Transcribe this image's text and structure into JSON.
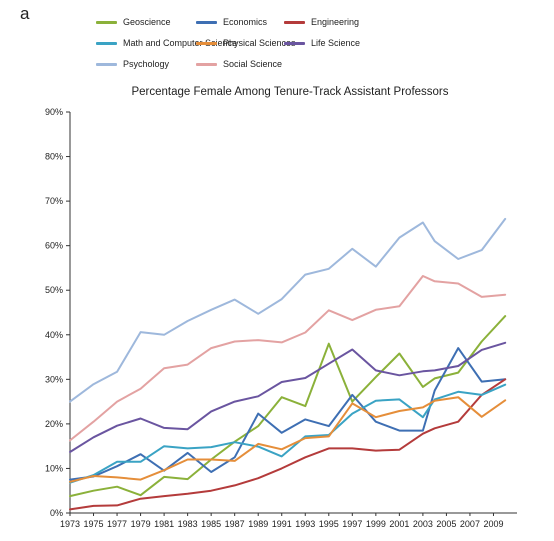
{
  "panel_label": "a",
  "chart_data": {
    "type": "line",
    "title": "Percentage Female Among Tenure-Track Assistant Professors",
    "xlabel": "",
    "ylabel": "",
    "ylim": [
      0,
      90
    ],
    "y_ticks": [
      0,
      10,
      20,
      30,
      40,
      50,
      60,
      70,
      80,
      90
    ],
    "y_tick_labels": [
      "0%",
      "10%",
      "20%",
      "30%",
      "40%",
      "50%",
      "60%",
      "70%",
      "80%",
      "90%"
    ],
    "x_tick_labels": [
      "1973",
      "1975",
      "1977",
      "1979",
      "1981",
      "1983",
      "1985",
      "1987",
      "1989",
      "1991",
      "1993",
      "1995",
      "1997",
      "1999",
      "2001",
      "2003",
      "2005",
      "2007",
      "2009"
    ],
    "x": [
      1973,
      1975,
      1977,
      1979,
      1981,
      1983,
      1985,
      1987,
      1989,
      1991,
      1993,
      1995,
      1997,
      1999,
      2001,
      2003,
      2004,
      2006,
      2008,
      2010
    ],
    "grid": false,
    "legend_position": "top",
    "series": [
      {
        "name": "Geoscience",
        "color": "#8bb13a",
        "values": [
          3.8,
          5.0,
          5.9,
          4.0,
          8.1,
          7.6,
          12.0,
          16.0,
          19.5,
          26.0,
          24.0,
          38.0,
          25.0,
          30.5,
          35.8,
          28.3,
          30.2,
          31.5,
          38.5,
          44.2
        ]
      },
      {
        "name": "Economics",
        "color": "#3e6fb3",
        "values": [
          7.5,
          8.2,
          10.5,
          13.2,
          9.5,
          13.5,
          9.2,
          12.5,
          22.3,
          18.0,
          21.0,
          19.5,
          26.5,
          20.5,
          18.5,
          18.5,
          27.5,
          37.0,
          29.5,
          30.0
        ]
      },
      {
        "name": "Engineering",
        "color": "#b43b3b",
        "values": [
          0.8,
          1.6,
          1.7,
          3.2,
          3.8,
          4.3,
          5.0,
          6.2,
          7.8,
          10.0,
          12.5,
          14.5,
          14.5,
          14.0,
          14.2,
          17.8,
          19.0,
          20.5,
          26.5,
          30.0
        ]
      },
      {
        "name": "Math and Computer Science",
        "color": "#3aa3c4",
        "values": [
          6.8,
          8.5,
          11.5,
          11.5,
          15.0,
          14.5,
          14.8,
          15.9,
          14.9,
          12.7,
          17.2,
          17.5,
          22.3,
          25.2,
          25.5,
          21.5,
          25.5,
          27.2,
          26.5,
          28.8
        ]
      },
      {
        "name": "Physical Sciences",
        "color": "#e58e3a",
        "values": [
          7.0,
          8.3,
          8.0,
          7.5,
          9.6,
          12.0,
          12.0,
          11.7,
          15.5,
          14.3,
          16.8,
          17.2,
          24.6,
          21.5,
          22.9,
          23.7,
          25.2,
          26.0,
          21.6,
          25.3
        ]
      },
      {
        "name": "Life Science",
        "color": "#6a55a0",
        "values": [
          13.7,
          17.0,
          19.6,
          21.2,
          19.1,
          18.8,
          22.8,
          25.0,
          26.2,
          29.4,
          30.3,
          33.5,
          36.7,
          32.0,
          30.9,
          31.8,
          32.0,
          33.0,
          36.6,
          38.2
        ]
      },
      {
        "name": "Psychology",
        "color": "#9eb8dc",
        "values": [
          25.0,
          28.9,
          31.7,
          40.6,
          40.0,
          43.1,
          45.6,
          47.9,
          44.7,
          48.0,
          53.5,
          54.8,
          59.3,
          55.3,
          61.8,
          65.2,
          61.0,
          57.0,
          59.0,
          66.0
        ]
      },
      {
        "name": "Social Science",
        "color": "#e3a2a2",
        "values": [
          16.3,
          20.5,
          25.0,
          27.9,
          32.5,
          33.3,
          37.0,
          38.5,
          38.8,
          38.3,
          40.5,
          45.5,
          43.3,
          45.6,
          46.4,
          53.2,
          52.0,
          51.5,
          48.5,
          49.0
        ]
      }
    ]
  }
}
